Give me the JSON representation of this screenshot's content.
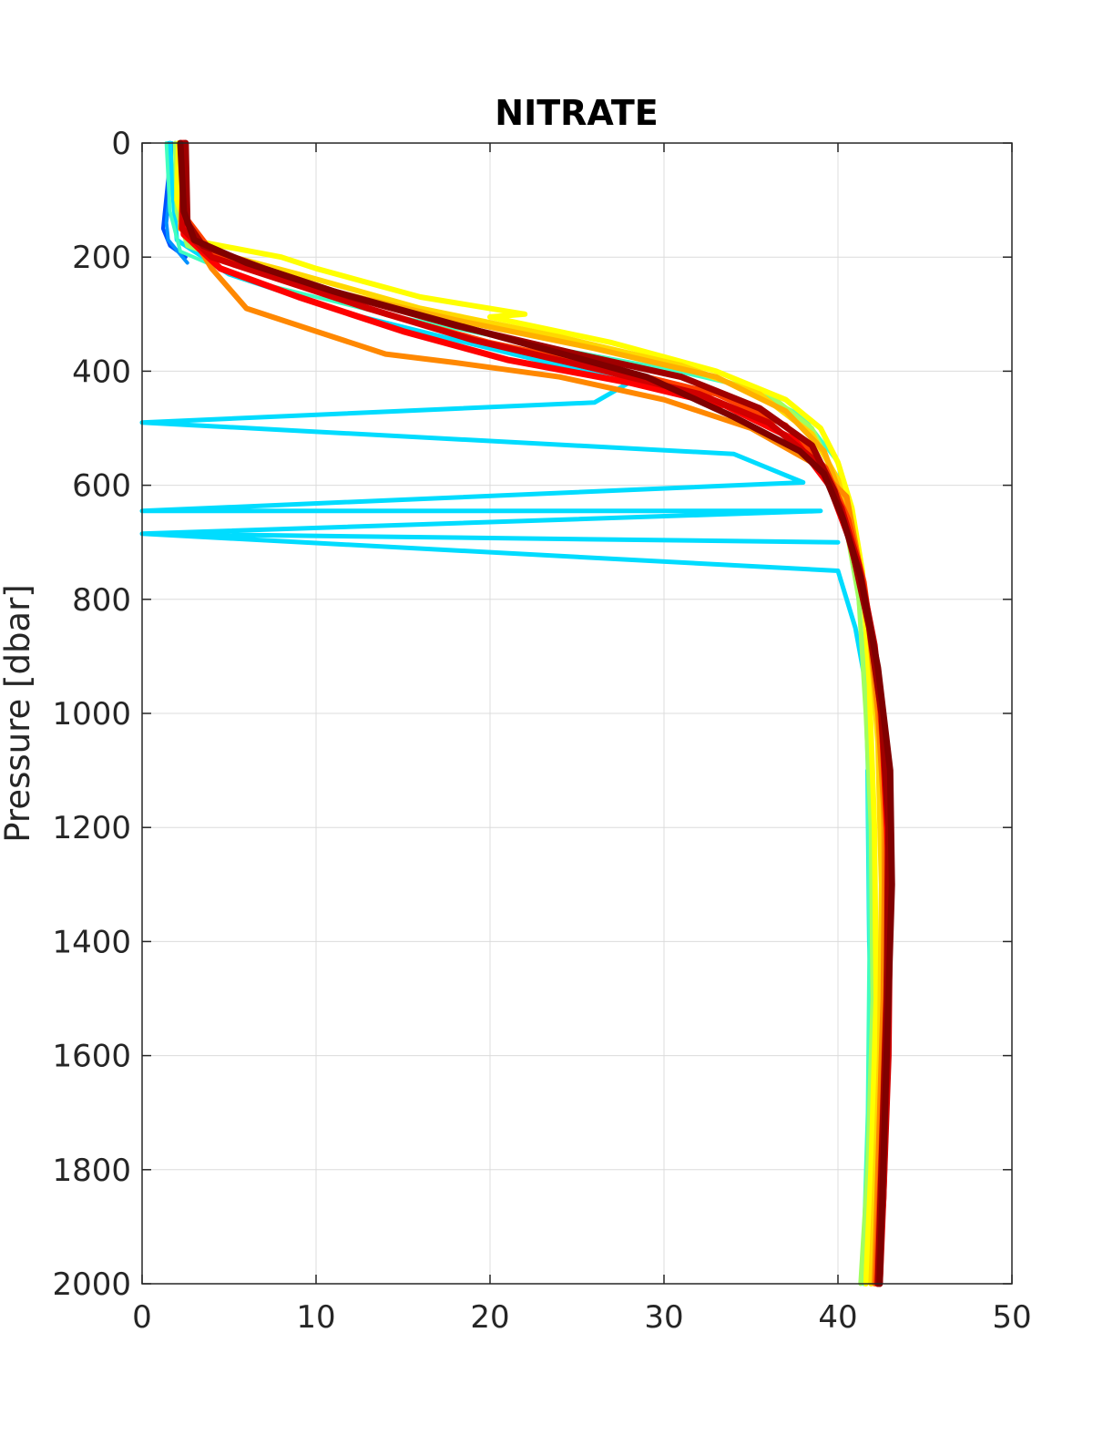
{
  "chart_data": {
    "type": "line",
    "title": "NITRATE",
    "xlabel": "",
    "ylabel": "Pressure [dbar]",
    "xlim": [
      0,
      50
    ],
    "ylim": [
      0,
      2000
    ],
    "y_reversed": true,
    "grid": true,
    "legend": "none",
    "x_ticks": [
      "0",
      "10",
      "20",
      "30",
      "40",
      "50"
    ],
    "y_ticks": [
      "0",
      "200",
      "400",
      "600",
      "800",
      "1000",
      "1200",
      "1400",
      "1600",
      "1800",
      "2000"
    ],
    "x_tick_values": [
      0,
      10,
      20,
      30,
      40,
      50
    ],
    "y_tick_values": [
      0,
      200,
      400,
      600,
      800,
      1000,
      1200,
      1400,
      1600,
      1800,
      2000
    ],
    "colors": {
      "grid": "#dcdcdc",
      "axes": "#262626"
    },
    "series": [
      {
        "color": "#0050ff",
        "width": 4,
        "points": [
          [
            1.5,
            0
          ],
          [
            1.5,
            60
          ],
          [
            1.3,
            120
          ],
          [
            1.2,
            150
          ],
          [
            1.6,
            180
          ],
          [
            2.5,
            200
          ]
        ]
      },
      {
        "color": "#0090ff",
        "width": 4,
        "points": [
          [
            1.7,
            0
          ],
          [
            1.6,
            80
          ],
          [
            1.4,
            140
          ],
          [
            1.5,
            170
          ],
          [
            2.6,
            210
          ]
        ]
      },
      {
        "color": "#00dcff",
        "width": 5,
        "points": [
          [
            1.6,
            0
          ],
          [
            1.8,
            100
          ],
          [
            2.0,
            170
          ],
          [
            5,
            230
          ],
          [
            12,
            300
          ],
          [
            20,
            360
          ],
          [
            28,
            420
          ],
          [
            26,
            455
          ],
          [
            0,
            490
          ],
          [
            34,
            545
          ],
          [
            38,
            595
          ],
          [
            0,
            645
          ],
          [
            39,
            645
          ],
          [
            0,
            685
          ],
          [
            40,
            700
          ],
          [
            0,
            685
          ],
          [
            40,
            750
          ],
          [
            41,
            850
          ],
          [
            41.6,
            950
          ],
          [
            41.8,
            1100
          ],
          [
            41.7,
            1100
          ],
          [
            41.8,
            1400
          ],
          [
            42.0,
            1600
          ],
          [
            41.8,
            1800
          ],
          [
            41.5,
            2000
          ]
        ]
      },
      {
        "color": "#40ffc0",
        "width": 4,
        "points": [
          [
            1.4,
            0
          ],
          [
            1.6,
            120
          ],
          [
            2.2,
            190
          ],
          [
            6,
            240
          ],
          [
            14,
            300
          ],
          [
            22,
            350
          ],
          [
            30,
            395
          ],
          [
            35,
            430
          ],
          [
            38,
            480
          ],
          [
            40,
            560
          ],
          [
            40.5,
            650
          ],
          [
            41,
            750
          ],
          [
            41.5,
            900
          ],
          [
            41.7,
            1100
          ],
          [
            41.8,
            1400
          ],
          [
            41.7,
            1700
          ],
          [
            41.4,
            2000
          ]
        ]
      },
      {
        "color": "#a0ff60",
        "width": 5,
        "points": [
          [
            1.9,
            0
          ],
          [
            2.0,
            120
          ],
          [
            2.6,
            180
          ],
          [
            7,
            230
          ],
          [
            15,
            290
          ],
          [
            24,
            345
          ],
          [
            31,
            395
          ],
          [
            36,
            440
          ],
          [
            38.5,
            500
          ],
          [
            39.8,
            580
          ],
          [
            40.5,
            680
          ],
          [
            41.2,
            800
          ],
          [
            41.6,
            1000
          ],
          [
            41.9,
            1200
          ],
          [
            42.0,
            1500
          ],
          [
            41.7,
            1800
          ],
          [
            41.3,
            2000
          ]
        ]
      },
      {
        "color": "#ffff00",
        "width": 6,
        "points": [
          [
            2.1,
            0
          ],
          [
            2.0,
            100
          ],
          [
            2.8,
            170
          ],
          [
            8,
            200
          ],
          [
            10,
            220
          ],
          [
            16,
            270
          ],
          [
            22,
            300
          ],
          [
            20,
            305
          ],
          [
            27,
            350
          ],
          [
            33,
            400
          ],
          [
            37,
            450
          ],
          [
            39,
            500
          ],
          [
            40,
            560
          ],
          [
            40.8,
            640
          ],
          [
            41.4,
            750
          ],
          [
            41.8,
            950
          ],
          [
            42.1,
            1200
          ],
          [
            42.2,
            1500
          ],
          [
            41.9,
            1800
          ],
          [
            41.6,
            2000
          ]
        ]
      },
      {
        "color": "#ffd800",
        "width": 6,
        "points": [
          [
            2.3,
            0
          ],
          [
            2.4,
            140
          ],
          [
            4,
            190
          ],
          [
            9,
            230
          ],
          [
            16,
            290
          ],
          [
            24,
            340
          ],
          [
            31,
            390
          ],
          [
            35.5,
            440
          ],
          [
            38.5,
            510
          ],
          [
            40,
            590
          ],
          [
            41,
            700
          ],
          [
            41.8,
            850
          ],
          [
            42.3,
            1050
          ],
          [
            42.5,
            1300
          ],
          [
            42.4,
            1600
          ],
          [
            42.1,
            1850
          ],
          [
            41.9,
            2000
          ]
        ]
      },
      {
        "color": "#ffb000",
        "width": 6,
        "points": [
          [
            2.5,
            0
          ],
          [
            2.2,
            150
          ],
          [
            5,
            210
          ],
          [
            11,
            260
          ],
          [
            18,
            310
          ],
          [
            26,
            360
          ],
          [
            33,
            410
          ],
          [
            37,
            470
          ],
          [
            39.2,
            540
          ],
          [
            40.2,
            620
          ],
          [
            41.1,
            720
          ],
          [
            42,
            880
          ],
          [
            42.6,
            1100
          ],
          [
            42.7,
            1400
          ],
          [
            42.5,
            1700
          ],
          [
            42.2,
            2000
          ]
        ]
      },
      {
        "color": "#ff8800",
        "width": 6,
        "points": [
          [
            2.4,
            0
          ],
          [
            2.6,
            150
          ],
          [
            4,
            220
          ],
          [
            6,
            290
          ],
          [
            10,
            330
          ],
          [
            14,
            370
          ],
          [
            18,
            385
          ],
          [
            24,
            410
          ],
          [
            30,
            450
          ],
          [
            35,
            500
          ],
          [
            38.5,
            560
          ],
          [
            40.5,
            620
          ],
          [
            41,
            700
          ],
          [
            41.6,
            800
          ],
          [
            42.3,
            1000
          ],
          [
            42.7,
            1200
          ],
          [
            42.6,
            1500
          ],
          [
            42.3,
            1800
          ],
          [
            42.1,
            2000
          ]
        ]
      },
      {
        "color": "#ff4000",
        "width": 6,
        "points": [
          [
            2.2,
            0
          ],
          [
            2.5,
            130
          ],
          [
            4,
            190
          ],
          [
            8,
            240
          ],
          [
            14,
            300
          ],
          [
            20,
            350
          ],
          [
            27,
            395
          ],
          [
            33,
            440
          ],
          [
            37,
            495
          ],
          [
            39.3,
            570
          ],
          [
            40.6,
            660
          ],
          [
            41.5,
            770
          ],
          [
            42.3,
            950
          ],
          [
            42.8,
            1150
          ],
          [
            42.8,
            1450
          ],
          [
            42.5,
            1750
          ],
          [
            42.2,
            2000
          ]
        ]
      },
      {
        "color": "#ff0000",
        "width": 7,
        "points": [
          [
            2.3,
            0
          ],
          [
            2.4,
            160
          ],
          [
            4.5,
            220
          ],
          [
            9,
            270
          ],
          [
            15,
            330
          ],
          [
            21,
            380
          ],
          [
            28,
            420
          ],
          [
            33.5,
            460
          ],
          [
            37.5,
            520
          ],
          [
            39.5,
            600
          ],
          [
            40.6,
            690
          ],
          [
            41.7,
            820
          ],
          [
            42.5,
            1000
          ],
          [
            42.9,
            1250
          ],
          [
            42.9,
            1550
          ],
          [
            42.6,
            1850
          ],
          [
            42.4,
            2000
          ]
        ]
      },
      {
        "color": "#d00000",
        "width": 7,
        "points": [
          [
            2.4,
            0
          ],
          [
            2.3,
            150
          ],
          [
            4,
            200
          ],
          [
            8,
            240
          ],
          [
            13,
            290
          ],
          [
            19,
            345
          ],
          [
            26,
            395
          ],
          [
            32,
            440
          ],
          [
            36,
            490
          ],
          [
            38.8,
            560
          ],
          [
            40.2,
            640
          ],
          [
            41.2,
            740
          ],
          [
            42.1,
            880
          ],
          [
            42.8,
            1080
          ],
          [
            43,
            1300
          ],
          [
            42.9,
            1600
          ],
          [
            42.6,
            1850
          ],
          [
            42.3,
            2000
          ]
        ]
      },
      {
        "color": "#a00000",
        "width": 7,
        "points": [
          [
            2.5,
            0
          ],
          [
            2.6,
            140
          ],
          [
            3.5,
            180
          ],
          [
            7,
            220
          ],
          [
            12,
            270
          ],
          [
            18,
            320
          ],
          [
            25,
            370
          ],
          [
            31,
            410
          ],
          [
            35.5,
            465
          ],
          [
            38.5,
            530
          ],
          [
            39.8,
            610
          ],
          [
            40.8,
            710
          ],
          [
            41.8,
            850
          ],
          [
            42.5,
            1000
          ],
          [
            42.9,
            1200
          ],
          [
            42.8,
            1500
          ],
          [
            42.5,
            1800
          ],
          [
            42.3,
            2000
          ]
        ]
      },
      {
        "color": "#800000",
        "width": 7,
        "points": [
          [
            2.2,
            0
          ],
          [
            2.4,
            120
          ],
          [
            3,
            170
          ],
          [
            6,
            210
          ],
          [
            11,
            260
          ],
          [
            17,
            310
          ],
          [
            23,
            360
          ],
          [
            29,
            410
          ],
          [
            34,
            480
          ],
          [
            37.8,
            540
          ],
          [
            39.2,
            580
          ],
          [
            40.3,
            660
          ],
          [
            41.3,
            760
          ],
          [
            42.3,
            920
          ],
          [
            43,
            1100
          ],
          [
            43.1,
            1300
          ],
          [
            42.8,
            1600
          ],
          [
            42.5,
            1900
          ],
          [
            42.4,
            2000
          ]
        ]
      }
    ]
  }
}
